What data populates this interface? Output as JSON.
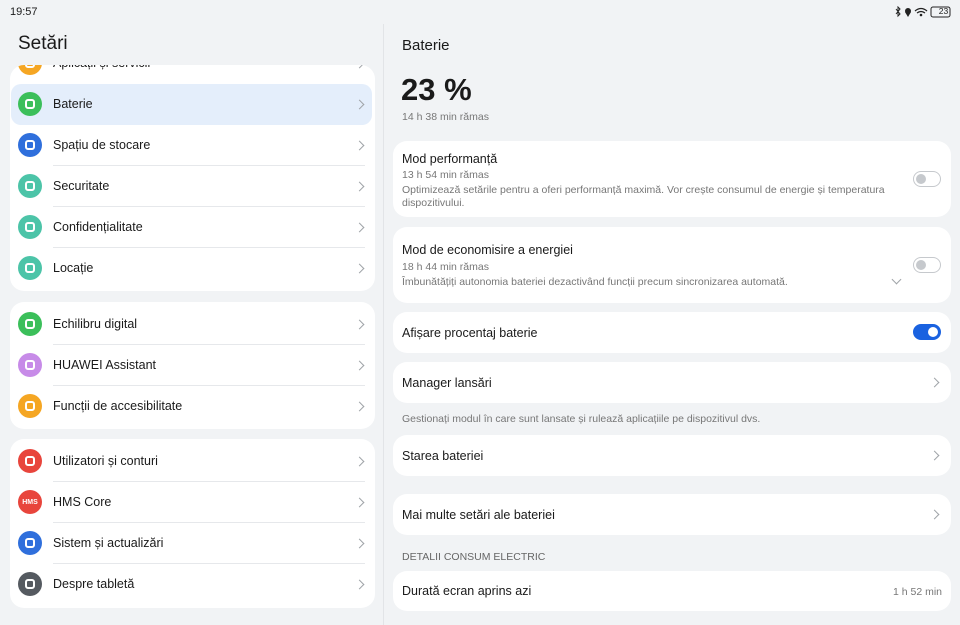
{
  "status_bar": {
    "time": "19:57",
    "battery": "23"
  },
  "sidebar": {
    "title": "Setări",
    "groups": [
      {
        "items": [
          {
            "label": "Aplicații și servicii",
            "color": "#f5a623"
          },
          {
            "label": "Baterie",
            "color": "#3bbf5a",
            "selected": true
          },
          {
            "label": "Spațiu de stocare",
            "color": "#2f6fdc"
          },
          {
            "label": "Securitate",
            "color": "#4cc4a8"
          },
          {
            "label": "Confidențialitate",
            "color": "#4cc4a8"
          },
          {
            "label": "Locație",
            "color": "#4cc4a8"
          }
        ]
      },
      {
        "items": [
          {
            "label": "Echilibru digital",
            "color": "#3bbf5a"
          },
          {
            "label": "HUAWEI Assistant",
            "color": "#c78be8"
          },
          {
            "label": "Funcții de accesibilitate",
            "color": "#f5a623"
          }
        ]
      },
      {
        "items": [
          {
            "label": "Utilizatori și conturi",
            "color": "#e8453c"
          },
          {
            "label": "HMS Core",
            "color": "#e8453c",
            "icon_text": "HMS"
          },
          {
            "label": "Sistem și actualizări",
            "color": "#2f6fdc"
          },
          {
            "label": "Despre tabletă",
            "color": "#555a60"
          }
        ]
      }
    ]
  },
  "detail": {
    "title": "Baterie",
    "level": "23 %",
    "remaining": "14 h 38 min rămas",
    "performance": {
      "title": "Mod performanță",
      "subtitle": "13 h 54 min rămas",
      "description": "Optimizează setările pentru a oferi performanță maximă. Vor crește consumul de energie și temperatura dispozitivului.",
      "enabled": false
    },
    "power_saving": {
      "title": "Mod de economisire a energiei",
      "subtitle": "18 h 44 min rămas",
      "description": "Îmbunătățiți autonomia bateriei dezactivând funcții precum sincronizarea automată.",
      "enabled": false
    },
    "show_percentage": {
      "title": "Afișare procentaj baterie",
      "enabled": true
    },
    "launch_manager": {
      "title": "Manager lansări",
      "note": "Gestionați modul în care sunt lansate și rulează aplicațiile pe dispozitivul dvs."
    },
    "battery_health": {
      "title": "Starea bateriei"
    },
    "more_settings": {
      "title": "Mai multe setări ale bateriei"
    },
    "consumption_header": "DETALII CONSUM ELECTRIC",
    "screen_on": {
      "title": "Durată ecran aprins azi",
      "value": "1 h 52 min"
    }
  }
}
